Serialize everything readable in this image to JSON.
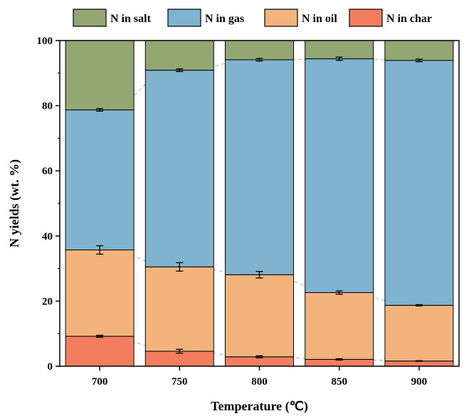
{
  "chart_data": {
    "type": "bar",
    "stacked": true,
    "xlabel": "Temperature (℃)",
    "ylabel": "N yields (wt. %)",
    "categories": [
      "700",
      "750",
      "800",
      "850",
      "900"
    ],
    "ylim": [
      0,
      100
    ],
    "yticks": [
      0,
      20,
      40,
      60,
      80,
      100
    ],
    "grid": false,
    "legend_position": "top",
    "series": [
      {
        "name": "N in char",
        "color": "#f37e5f",
        "values": [
          9.2,
          4.6,
          2.9,
          2.1,
          1.6
        ],
        "errors": [
          0.3,
          0.6,
          0.3,
          0.2,
          0.1
        ]
      },
      {
        "name": "N in oil",
        "color": "#f2b37c",
        "values": [
          26.5,
          25.9,
          25.2,
          20.5,
          17.1
        ],
        "errors": [
          1.3,
          1.3,
          1.0,
          0.5,
          0.2
        ]
      },
      {
        "name": "N in gas",
        "color": "#7fb3ce",
        "values": [
          43.0,
          60.4,
          66.0,
          71.8,
          75.2
        ],
        "errors": [
          0.4,
          0.4,
          0.4,
          0.5,
          0.4
        ]
      },
      {
        "name": "N in salt",
        "color": "#92a772",
        "values": [
          21.3,
          9.1,
          5.9,
          5.6,
          6.1
        ],
        "errors": [
          0,
          0,
          0,
          0,
          0
        ]
      }
    ],
    "legend_order": [
      "N in salt",
      "N in gas",
      "N in oil",
      "N in char"
    ],
    "connector_color": "#a8a8d8"
  }
}
